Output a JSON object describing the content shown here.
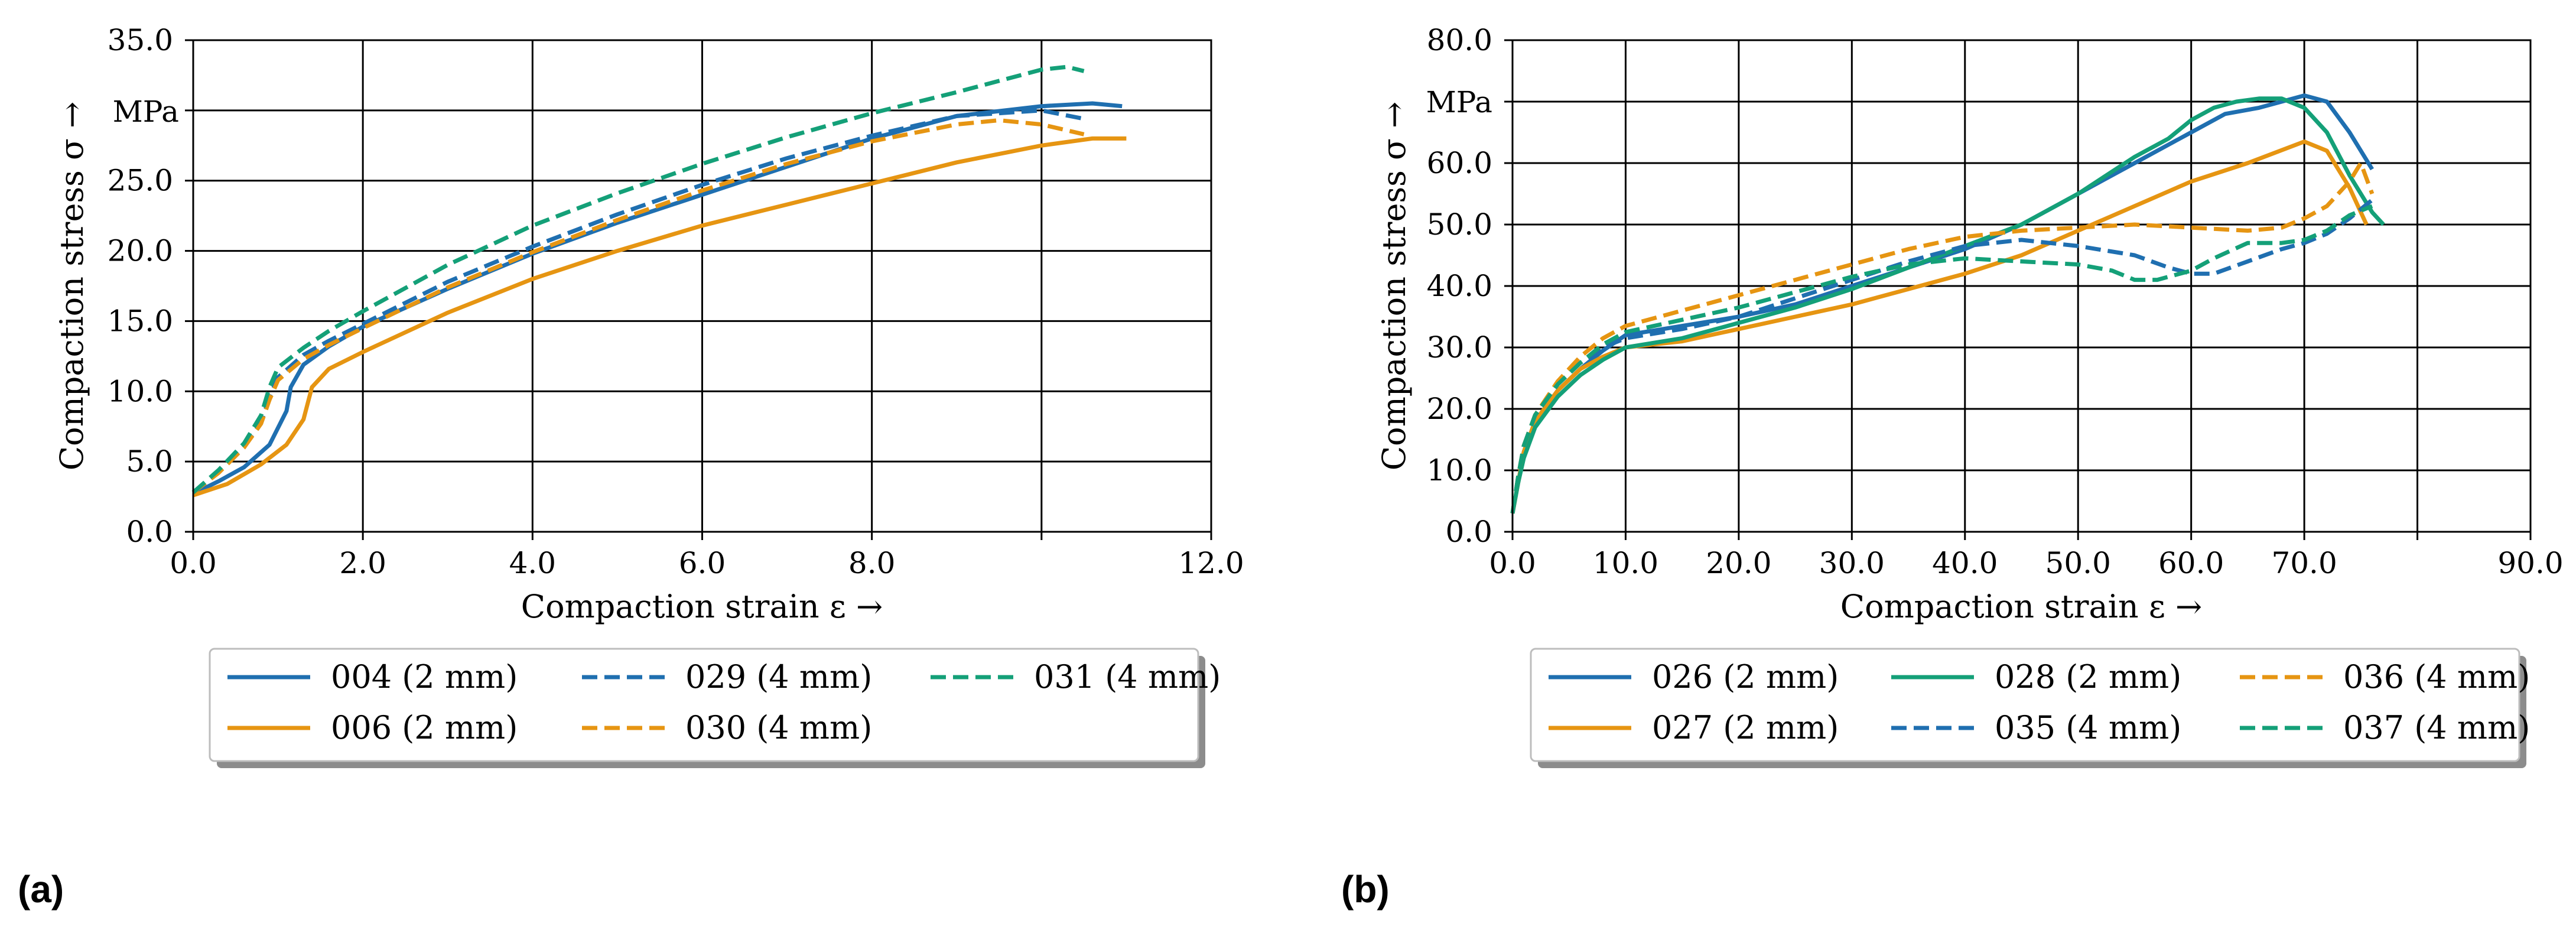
{
  "colors": {
    "blue": "#1f6fb0",
    "orange": "#e69512",
    "green": "#14a078"
  },
  "chart_data": [
    {
      "type": "line",
      "panel": "(a)",
      "xlabel": "Compaction strain ε →",
      "ylabel": "Compaction stress σ →",
      "yunit": "MPa",
      "xlim": [
        0,
        12
      ],
      "ylim": [
        0,
        35
      ],
      "grid": true,
      "xticks": [
        0,
        2,
        4,
        6,
        8,
        10,
        12
      ],
      "xtick_labels": [
        "0.0",
        "2.0",
        "4.0",
        "6.0",
        "8.0",
        "",
        "12.0"
      ],
      "yticks": [
        0,
        5,
        10,
        15,
        20,
        25,
        30,
        35
      ],
      "ytick_labels": [
        "0.0",
        "5.0",
        "10.0",
        "15.0",
        "20.0",
        "25.0",
        "",
        "35.0"
      ],
      "legend": {
        "placement": "below",
        "columns": 3
      },
      "series": [
        {
          "name": "004 (2 mm)",
          "color": "blue",
          "dash": false,
          "x": [
            0,
            0.3,
            0.6,
            0.9,
            1.1,
            1.15,
            1.3,
            1.6,
            2,
            3,
            4,
            5,
            6,
            7,
            8,
            9,
            10,
            10.6,
            10.95
          ],
          "y": [
            2.7,
            3.6,
            4.6,
            6.2,
            8.6,
            10.3,
            11.9,
            13.2,
            14.6,
            17.3,
            19.8,
            22.0,
            24.0,
            26.0,
            28.0,
            29.6,
            30.3,
            30.5,
            30.3
          ]
        },
        {
          "name": "006 (2 mm)",
          "color": "orange",
          "dash": false,
          "x": [
            0,
            0.4,
            0.8,
            1.1,
            1.3,
            1.4,
            1.6,
            2,
            3,
            4,
            5,
            6,
            7,
            8,
            9,
            10,
            10.6,
            11
          ],
          "y": [
            2.6,
            3.4,
            4.8,
            6.2,
            8.0,
            10.3,
            11.6,
            12.8,
            15.6,
            18.0,
            20.0,
            21.8,
            23.3,
            24.8,
            26.3,
            27.5,
            28.0,
            28.0
          ]
        },
        {
          "name": "029 (4 mm)",
          "color": "blue",
          "dash": true,
          "x": [
            0,
            0.3,
            0.6,
            0.8,
            0.9,
            1.0,
            1.3,
            1.6,
            2,
            3,
            4,
            5,
            6,
            7,
            8,
            9,
            10,
            10.5
          ],
          "y": [
            2.8,
            4.3,
            6.1,
            7.8,
            9.6,
            11.0,
            12.6,
            13.6,
            14.8,
            17.8,
            20.3,
            22.6,
            24.7,
            26.6,
            28.2,
            29.6,
            30.0,
            29.4
          ]
        },
        {
          "name": "030 (4 mm)",
          "color": "orange",
          "dash": true,
          "x": [
            0,
            0.3,
            0.6,
            0.8,
            0.9,
            1.0,
            1.3,
            1.6,
            2,
            3,
            4,
            5,
            6,
            7,
            8,
            9,
            9.5,
            10,
            10.5
          ],
          "y": [
            2.8,
            4.2,
            6.0,
            7.7,
            9.4,
            10.8,
            12.3,
            13.3,
            14.5,
            17.4,
            19.9,
            22.2,
            24.3,
            26.2,
            27.8,
            29.0,
            29.3,
            29.0,
            28.3
          ]
        },
        {
          "name": "031 (4 mm)",
          "color": "green",
          "dash": true,
          "x": [
            0,
            0.3,
            0.6,
            0.8,
            0.9,
            1.0,
            1.3,
            1.6,
            2,
            3,
            4,
            5,
            6,
            7,
            8,
            9,
            9.5,
            10,
            10.3,
            10.5
          ],
          "y": [
            2.8,
            4.4,
            6.3,
            8.3,
            10.3,
            11.7,
            13.1,
            14.3,
            15.7,
            19.0,
            21.8,
            24.1,
            26.2,
            28.1,
            29.8,
            31.3,
            32.1,
            32.9,
            33.1,
            32.8
          ]
        }
      ]
    },
    {
      "type": "line",
      "panel": "(b)",
      "xlabel": "Compaction strain ε →",
      "ylabel": "Compaction stress σ →",
      "yunit": "MPa",
      "xlim": [
        0,
        90
      ],
      "ylim": [
        0,
        80
      ],
      "grid": true,
      "xticks": [
        0,
        10,
        20,
        30,
        40,
        50,
        60,
        70,
        80,
        90
      ],
      "xtick_labels": [
        "0.0",
        "10.0",
        "20.0",
        "30.0",
        "40.0",
        "50.0",
        "60.0",
        "70.0",
        "",
        "90.0"
      ],
      "yticks": [
        0,
        10,
        20,
        30,
        40,
        50,
        60,
        70,
        80
      ],
      "ytick_labels": [
        "0.0",
        "10.0",
        "20.0",
        "30.0",
        "40.0",
        "50.0",
        "60.0",
        "",
        "80.0"
      ],
      "legend": {
        "placement": "below",
        "columns": 3
      },
      "series": [
        {
          "name": "026 (2 mm)",
          "color": "blue",
          "dash": false,
          "x": [
            0,
            0.5,
            1,
            2,
            4,
            6,
            8,
            10,
            15,
            20,
            25,
            30,
            35,
            40,
            45,
            50,
            55,
            60,
            63,
            66,
            68,
            70,
            72,
            74,
            76
          ],
          "y": [
            3,
            8,
            13,
            18,
            23,
            26.5,
            29.5,
            32,
            33.5,
            35,
            37,
            40,
            43,
            46,
            50,
            55,
            60,
            65,
            68,
            69,
            70,
            71,
            70,
            65,
            59
          ]
        },
        {
          "name": "027 (2 mm)",
          "color": "orange",
          "dash": false,
          "x": [
            0,
            0.5,
            1,
            2,
            4,
            6,
            8,
            10,
            15,
            20,
            25,
            30,
            35,
            40,
            45,
            50,
            55,
            60,
            65,
            70,
            72,
            74,
            75.5
          ],
          "y": [
            3,
            8,
            13,
            18,
            23,
            26.5,
            28.5,
            30,
            31,
            33,
            35,
            37,
            39.5,
            42,
            45,
            49,
            53,
            57,
            60,
            63.5,
            62,
            56,
            50
          ]
        },
        {
          "name": "028 (2 mm)",
          "color": "green",
          "dash": false,
          "x": [
            0,
            0.5,
            1,
            2,
            4,
            6,
            8,
            10,
            15,
            20,
            25,
            30,
            35,
            40,
            45,
            50,
            55,
            58,
            60,
            62,
            64,
            66,
            68,
            70,
            72,
            74,
            76,
            77
          ],
          "y": [
            3,
            8,
            12,
            17,
            22,
            25.5,
            28,
            30,
            31.5,
            34,
            36.5,
            39.5,
            43,
            46.5,
            50,
            55,
            61,
            64,
            67,
            69,
            70,
            70.5,
            70.5,
            69,
            65,
            58,
            52,
            50
          ]
        },
        {
          "name": "035 (4 mm)",
          "color": "blue",
          "dash": true,
          "x": [
            0,
            0.5,
            1,
            2,
            4,
            6,
            8,
            10,
            15,
            20,
            25,
            30,
            35,
            40,
            45,
            50,
            55,
            58,
            60,
            62,
            65,
            68,
            70,
            72,
            74,
            76
          ],
          "y": [
            3,
            9,
            14,
            19,
            24,
            27.5,
            30,
            31.5,
            33,
            35,
            38,
            41,
            44,
            46.5,
            47.5,
            46.5,
            45,
            43,
            42,
            42,
            44,
            46,
            47,
            48.5,
            51,
            54
          ]
        },
        {
          "name": "036 (4 mm)",
          "color": "orange",
          "dash": true,
          "x": [
            0,
            0.5,
            1,
            2,
            4,
            6,
            8,
            10,
            15,
            20,
            25,
            30,
            35,
            40,
            45,
            50,
            55,
            60,
            65,
            68,
            70,
            72,
            74,
            75,
            76
          ],
          "y": [
            3,
            9,
            14,
            19,
            24.5,
            28.5,
            31.5,
            33.5,
            36,
            38.5,
            41,
            43.5,
            46,
            48,
            49,
            49.5,
            50,
            49.5,
            49,
            49.5,
            51,
            53,
            57,
            60,
            55
          ]
        },
        {
          "name": "037 (4 mm)",
          "color": "green",
          "dash": true,
          "x": [
            0,
            0.5,
            1,
            2,
            4,
            6,
            8,
            10,
            15,
            20,
            25,
            30,
            35,
            40,
            45,
            50,
            53,
            55,
            57,
            60,
            62,
            65,
            68,
            70,
            72,
            74,
            76
          ],
          "y": [
            3,
            9,
            14,
            19,
            24,
            27.5,
            30.5,
            32.5,
            34.5,
            36.5,
            39,
            41.5,
            43.5,
            44.5,
            44,
            43.5,
            42.5,
            41,
            41,
            42.5,
            44.5,
            47,
            47,
            47.5,
            49,
            51.5,
            53
          ]
        }
      ]
    }
  ]
}
